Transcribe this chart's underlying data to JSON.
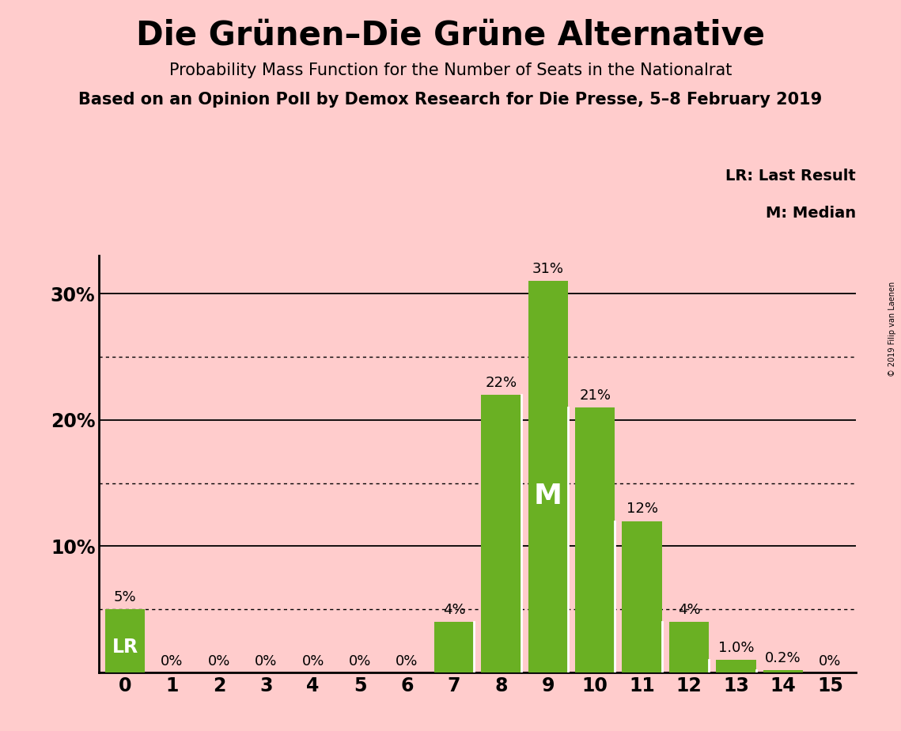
{
  "title": "Die Grünen–Die Grüne Alternative",
  "subtitle1": "Probability Mass Function for the Number of Seats in the Nationalrat",
  "subtitle2": "Based on an Opinion Poll by Demox Research for Die Presse, 5–8 February 2019",
  "copyright": "© 2019 Filip van Laenen",
  "categories": [
    0,
    1,
    2,
    3,
    4,
    5,
    6,
    7,
    8,
    9,
    10,
    11,
    12,
    13,
    14,
    15
  ],
  "values": [
    5,
    0,
    0,
    0,
    0,
    0,
    0,
    4,
    22,
    31,
    21,
    12,
    4,
    1.0,
    0.2,
    0
  ],
  "labels": [
    "5%",
    "0%",
    "0%",
    "0%",
    "0%",
    "0%",
    "0%",
    "4%",
    "22%",
    "31%",
    "21%",
    "12%",
    "4%",
    "1.0%",
    "0.2%",
    "0%"
  ],
  "bar_color": "#6ab023",
  "background_color": "#ffcccc",
  "lr_seat": 0,
  "median_seat": 9,
  "lr_label": "LR",
  "median_label": "M",
  "legend_lr": "LR: Last Result",
  "legend_m": "M: Median",
  "ylim": [
    0,
    33
  ],
  "yticks": [
    10,
    20,
    30
  ],
  "ytick_labels": [
    "10%",
    "20%",
    "30%"
  ],
  "solid_gridlines": [
    10,
    20,
    30
  ],
  "dotted_gridlines": [
    5,
    15,
    25
  ],
  "title_fontsize": 30,
  "subtitle1_fontsize": 15,
  "subtitle2_fontsize": 15,
  "label_fontsize": 13,
  "axis_fontsize": 17,
  "legend_fontsize": 14
}
